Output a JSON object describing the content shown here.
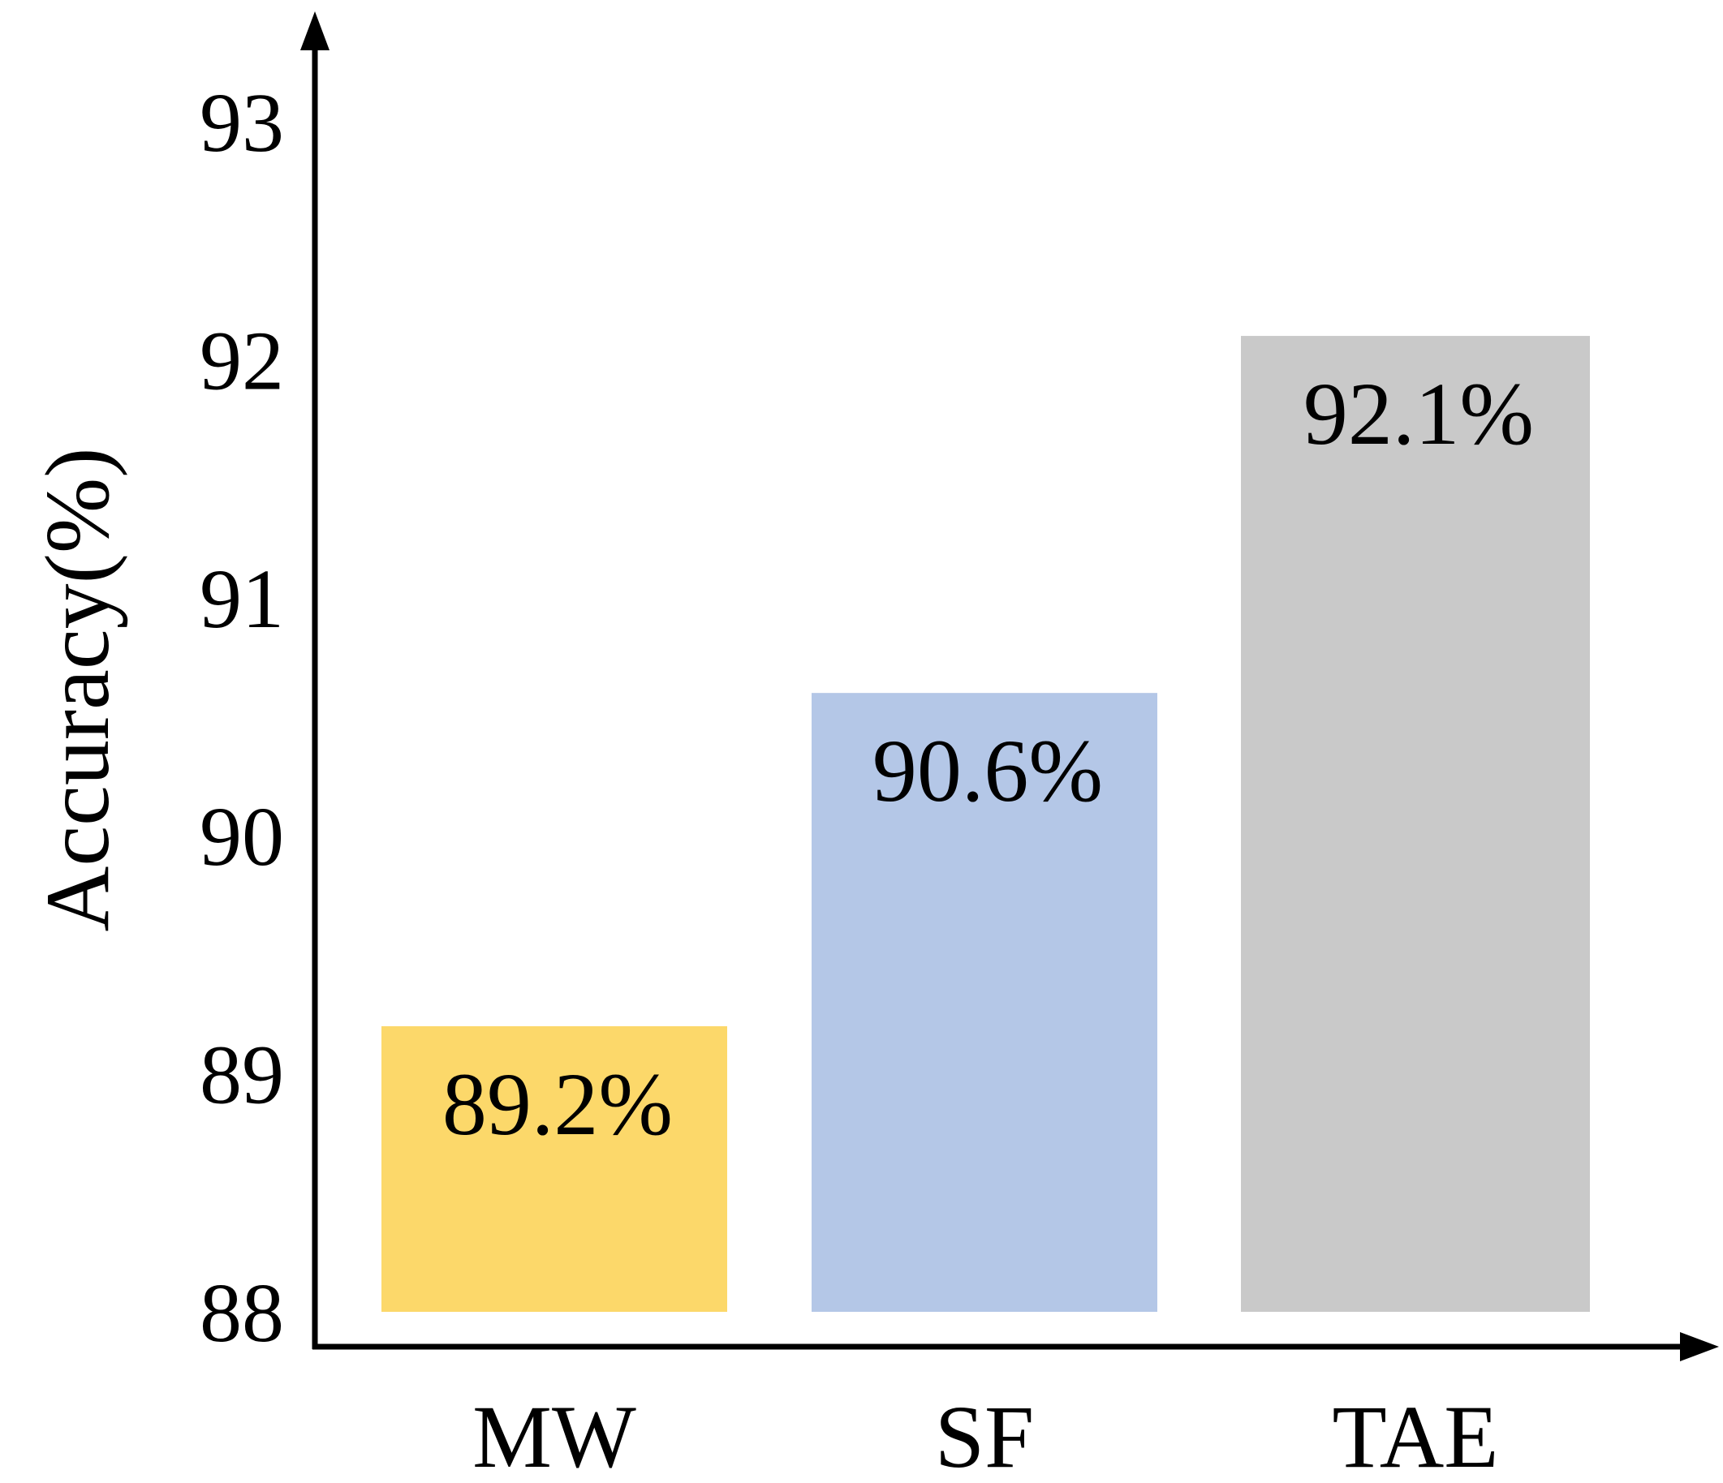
{
  "chart_data": {
    "type": "bar",
    "categories": [
      "MW",
      "SF",
      "TAE"
    ],
    "values": [
      89.2,
      90.6,
      92.1
    ],
    "value_labels": [
      "89.2%",
      "90.6%",
      "92.1%"
    ],
    "bar_colors": [
      "#FCD86A",
      "#B4C7E7",
      "#C9C9C9"
    ],
    "title": "",
    "xlabel": "",
    "ylabel": "Accuracy(%)",
    "ylim": [
      88,
      93
    ],
    "yticks": [
      88,
      89,
      90,
      91,
      92,
      93
    ],
    "grid": false,
    "legend": false
  }
}
